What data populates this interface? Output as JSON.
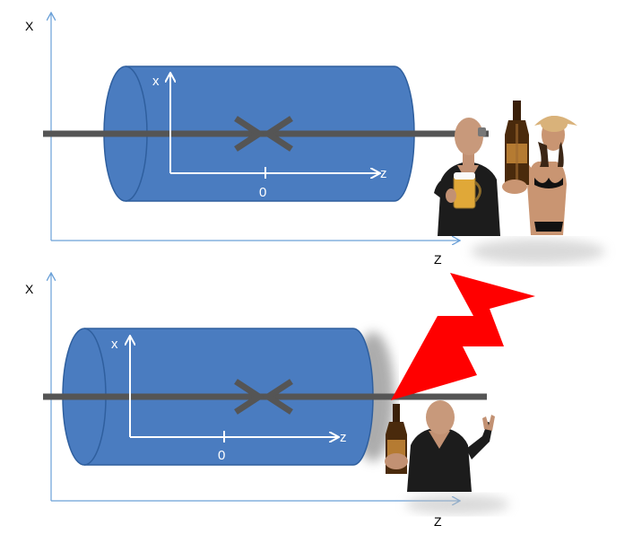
{
  "panels": [
    {
      "outer_axis": {
        "vertical_label": "X",
        "horizontal_label": "Z"
      },
      "inner_axis": {
        "vertical_label": "x",
        "horizontal_label": "z",
        "origin_label": "0"
      },
      "scene": "two people holding beer"
    },
    {
      "outer_axis": {
        "vertical_label": "X",
        "horizontal_label": "Z"
      },
      "inner_axis": {
        "vertical_label": "x",
        "horizontal_label": "z",
        "origin_label": "0"
      },
      "scene": "one person holding beer struck by lightning"
    }
  ],
  "colors": {
    "cylinder": "#4a7cc0",
    "cylinder_edge": "#2f5f9e",
    "beam": "#555555",
    "axis_blue": "#6aa0d8",
    "lightning": "#ff0000",
    "inner_axis": "#ffffff"
  }
}
